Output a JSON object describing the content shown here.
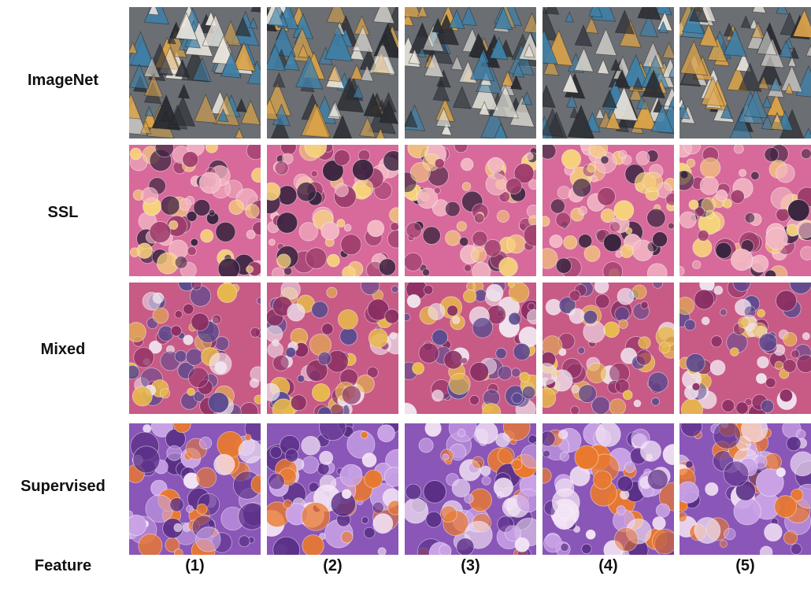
{
  "rows": [
    {
      "label": "ImageNet",
      "palette": {
        "bg": "#6b6f74",
        "c1": "#e8e4dc",
        "c2": "#3f7fa6",
        "c3": "#d9a24a",
        "c4": "#2b2d33"
      }
    },
    {
      "label": "SSL",
      "palette": {
        "bg": "#d76a9a",
        "c1": "#f3b7c4",
        "c2": "#3b2440",
        "c3": "#f6d27a",
        "c4": "#9d3d6b"
      }
    },
    {
      "label": "Mixed",
      "palette": {
        "bg": "#c85a86",
        "c1": "#5b4a8f",
        "c2": "#f0e3ee",
        "c3": "#e8b94c",
        "c4": "#8a2e63"
      }
    },
    {
      "label": "Supervised",
      "palette": {
        "bg": "#8a56b8",
        "c1": "#c9a2e6",
        "c2": "#e9792f",
        "c3": "#f3e3f5",
        "c4": "#5a2f86"
      }
    }
  ],
  "feature_label": "Feature",
  "columns": [
    "(1)",
    "(2)",
    "(3)",
    "(4)",
    "(5)"
  ]
}
